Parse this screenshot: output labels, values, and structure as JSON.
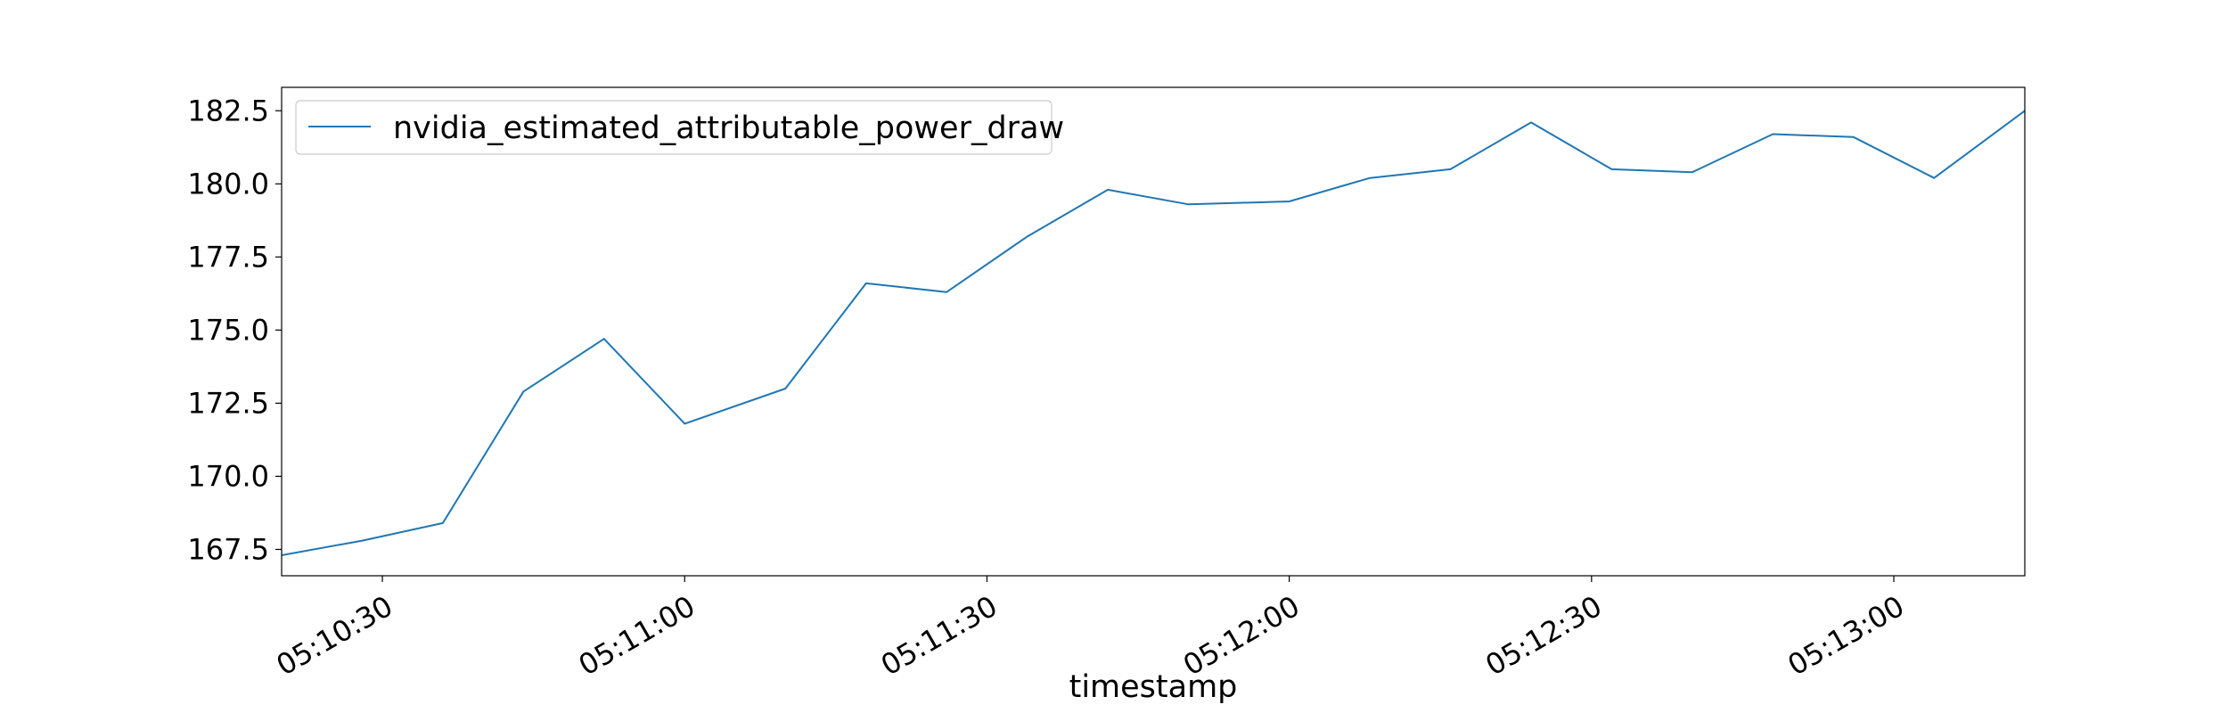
{
  "chart_data": {
    "type": "line",
    "title": "",
    "xlabel": "timestamp",
    "ylabel": "",
    "x": [
      "05:10:20",
      "05:10:28",
      "05:10:36",
      "05:10:44",
      "05:10:52",
      "05:11:00",
      "05:11:10",
      "05:11:18",
      "05:11:26",
      "05:11:34",
      "05:11:42",
      "05:11:50",
      "05:12:00",
      "05:12:08",
      "05:12:16",
      "05:12:24",
      "05:12:32",
      "05:12:40",
      "05:12:48",
      "05:12:56",
      "05:13:04",
      "05:13:13"
    ],
    "x_ticks": [
      "05:10:30",
      "05:11:00",
      "05:11:30",
      "05:12:00",
      "05:12:30",
      "05:13:00"
    ],
    "xlim": [
      "05:10:20",
      "05:13:13"
    ],
    "y_ticks": [
      "167.5",
      "170.0",
      "172.5",
      "175.0",
      "177.5",
      "180.0",
      "182.5"
    ],
    "ylim": [
      166.6,
      183.3
    ],
    "series": [
      {
        "name": "nvidia_estimated_attributable_power_draw",
        "color": "#1f77b4",
        "values": [
          167.3,
          167.8,
          168.4,
          172.9,
          174.7,
          171.8,
          173.0,
          176.6,
          176.3,
          178.2,
          179.8,
          179.3,
          179.4,
          180.2,
          180.5,
          182.1,
          180.5,
          180.4,
          181.7,
          181.6,
          180.2,
          182.5
        ]
      }
    ],
    "legend_position": "top-left",
    "grid": false
  }
}
